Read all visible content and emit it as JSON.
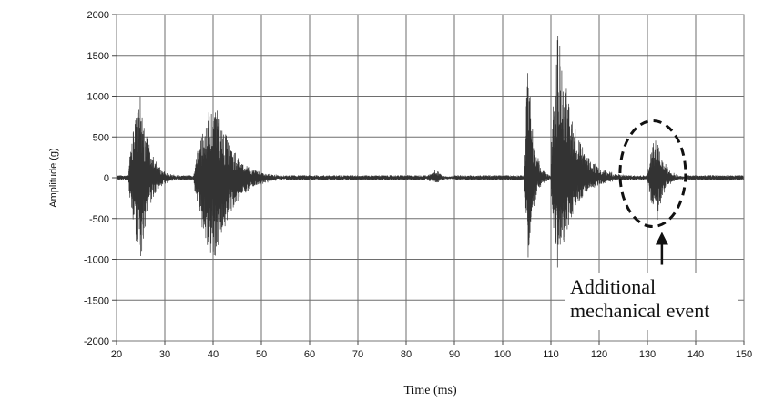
{
  "chart_data": {
    "type": "line",
    "xlabel": "Time (ms)",
    "ylabel": "Amplitude (g)",
    "xlim": [
      20,
      150
    ],
    "ylim": [
      -2000,
      2000
    ],
    "x_ticks": [
      20,
      30,
      40,
      50,
      60,
      70,
      80,
      90,
      100,
      110,
      120,
      130,
      140,
      150
    ],
    "y_ticks": [
      -2000,
      -1500,
      -1000,
      -500,
      0,
      500,
      1000,
      1500,
      2000
    ],
    "grid": true,
    "legend": "none",
    "line_color": "#333333",
    "series": [
      {
        "bursts": [
          {
            "t_start": 22.5,
            "t_peak": 25.0,
            "t_end": 33.0,
            "max": 1020,
            "min": -1040
          },
          {
            "t_start": 36.0,
            "t_peak": 40.5,
            "t_end": 55.0,
            "max": 990,
            "min": -1100
          },
          {
            "t_start": 84.0,
            "t_peak": 86.5,
            "t_end": 90.0,
            "max": 90,
            "min": -70
          },
          {
            "t_start": 104.5,
            "t_peak": 105.3,
            "t_end": 110.0,
            "max": 1430,
            "min": -1050
          },
          {
            "t_start": 110.0,
            "t_peak": 111.5,
            "t_end": 125.0,
            "max": 1830,
            "min": -1170
          },
          {
            "t_start": 130.0,
            "t_peak": 132.0,
            "t_end": 138.0,
            "max": 560,
            "min": -540
          }
        ],
        "baseline_noise": 30
      }
    ],
    "annotations": [
      {
        "text_lines": [
          "Additional",
          "mechanical event"
        ],
        "target_x": 133,
        "target_y": -600,
        "label_position": "below-target"
      }
    ]
  }
}
